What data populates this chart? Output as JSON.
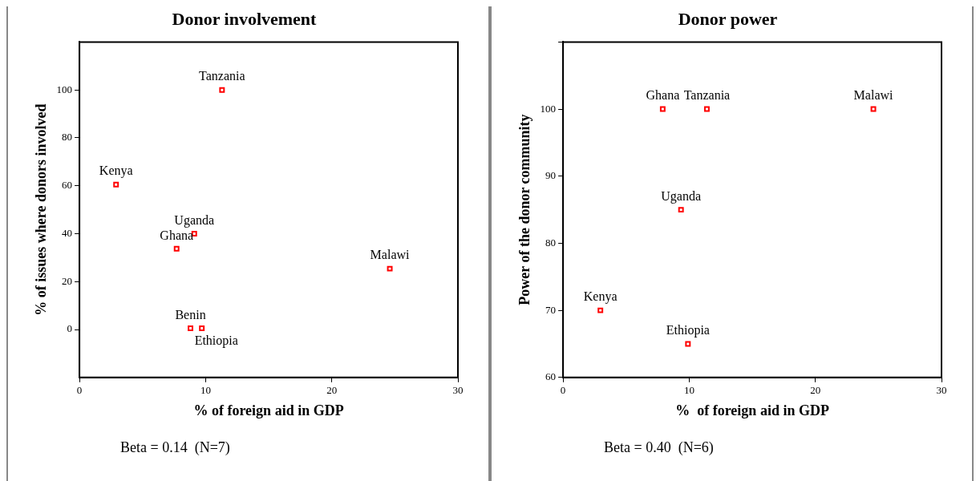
{
  "chart_data": [
    {
      "type": "scatter",
      "title": "Donor involvement",
      "xlabel": "% of foreign aid in GDP",
      "ylabel": "% of issues where donors involved",
      "x": [
        11.3,
        2.9,
        9.1,
        7.7,
        24.6,
        8.8,
        9.7
      ],
      "series": [
        {
          "color": "#ff0000",
          "values": [
            100,
            60.5,
            40,
            33.7,
            25.4,
            0.5,
            0.5
          ]
        }
      ],
      "xlim": [
        0,
        30
      ],
      "xticks": [
        0,
        10,
        20,
        30
      ],
      "ylim": [
        -20,
        120
      ],
      "yticks": [
        0,
        20,
        40,
        60,
        80,
        100
      ],
      "marker": "square",
      "grid": false,
      "legend": false,
      "annotations": [
        {
          "text": "Tanzania",
          "x": 11.3,
          "y": 100
        },
        {
          "text": "Kenya",
          "x": 2.9,
          "y": 60.5
        },
        {
          "text": "Uganda",
          "x": 9.1,
          "y": 40
        },
        {
          "text": "Ghana",
          "x": 7.7,
          "y": 33.7
        },
        {
          "text": "Malawi",
          "x": 24.6,
          "y": 25.4
        },
        {
          "text": "Benin",
          "x": 8.8,
          "y": 0.5
        },
        {
          "text": "Ethiopia",
          "x": 9.7,
          "y": 0.5
        },
        "Beta = 0.14  (N=7)"
      ]
    },
    {
      "type": "scatter",
      "title": "Donor power",
      "xlabel": "%  of foreign aid in GDP",
      "ylabel": "Power of the donor community",
      "x": [
        7.9,
        11.4,
        24.6,
        9.35,
        2.96,
        9.9
      ],
      "series": [
        {
          "color": "#ff0000",
          "values": [
            100,
            100,
            100,
            85,
            70,
            65
          ]
        }
      ],
      "xlim": [
        0,
        30
      ],
      "xticks": [
        0,
        10,
        20,
        30
      ],
      "ylim": [
        60,
        110
      ],
      "yticks": [
        60,
        70,
        80,
        90,
        100,
        {
          "value": 110,
          "label": null
        }
      ],
      "marker": "square",
      "grid": false,
      "legend": false,
      "annotations": [
        {
          "text": "Ghana",
          "x": 7.9,
          "y": 100
        },
        {
          "text": "Tanzania",
          "x": 11.4,
          "y": 100
        },
        {
          "text": "Malawi",
          "x": 24.6,
          "y": 100
        },
        {
          "text": "Uganda",
          "x": 9.35,
          "y": 85
        },
        {
          "text": "Kenya",
          "x": 2.96,
          "y": 70
        },
        {
          "text": "Ethiopia",
          "x": 9.9,
          "y": 65
        },
        "Beta = 0.40  (N=6)"
      ]
    }
  ]
}
